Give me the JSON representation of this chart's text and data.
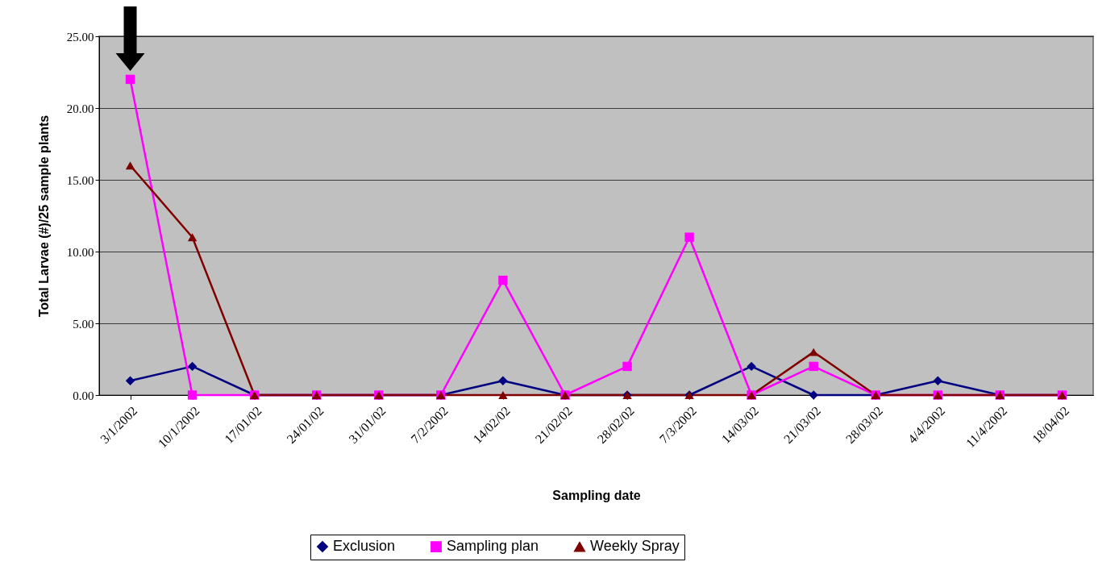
{
  "chart_data": {
    "type": "line",
    "xlabel": "Sampling date",
    "ylabel": "Total Larvae (#)/25 sample plants",
    "categories": [
      "3/1/2002",
      "10/1/2002",
      "17/01/02",
      "24/01/02",
      "31/01/02",
      "7/2/2002",
      "14/02/02",
      "21/02/02",
      "28/02/02",
      "7/3/2002",
      "14/03/02",
      "21/03/02",
      "28/03/02",
      "4/4/2002",
      "11/4/2002",
      "18/04/02"
    ],
    "series": [
      {
        "name": "Exclusion",
        "color": "#000080",
        "marker": "diamond",
        "values": [
          1,
          2,
          0,
          0,
          0,
          0,
          1,
          0,
          0,
          0,
          2,
          0,
          0,
          1,
          0,
          0
        ]
      },
      {
        "name": "Sampling plan",
        "color": "#ff00ff",
        "marker": "square",
        "values": [
          22,
          0,
          0,
          0,
          0,
          0,
          8,
          0,
          2,
          11,
          0,
          2,
          0,
          0,
          0,
          0
        ]
      },
      {
        "name": "Weekly Spray",
        "color": "#800000",
        "marker": "triangle",
        "values": [
          16,
          11,
          0,
          0,
          0,
          0,
          0,
          0,
          0,
          0,
          0,
          3,
          0,
          0,
          0,
          0
        ]
      }
    ],
    "ylim": [
      0,
      25
    ],
    "yticks": [
      {
        "value": 0,
        "label": "0.00"
      },
      {
        "value": 5,
        "label": "5.00"
      },
      {
        "value": 10,
        "label": "10.00"
      },
      {
        "value": 15,
        "label": "15.00"
      },
      {
        "value": 20,
        "label": "20.00"
      },
      {
        "value": 25,
        "label": "25.00"
      }
    ],
    "grid": "y",
    "legend": "bottom"
  }
}
